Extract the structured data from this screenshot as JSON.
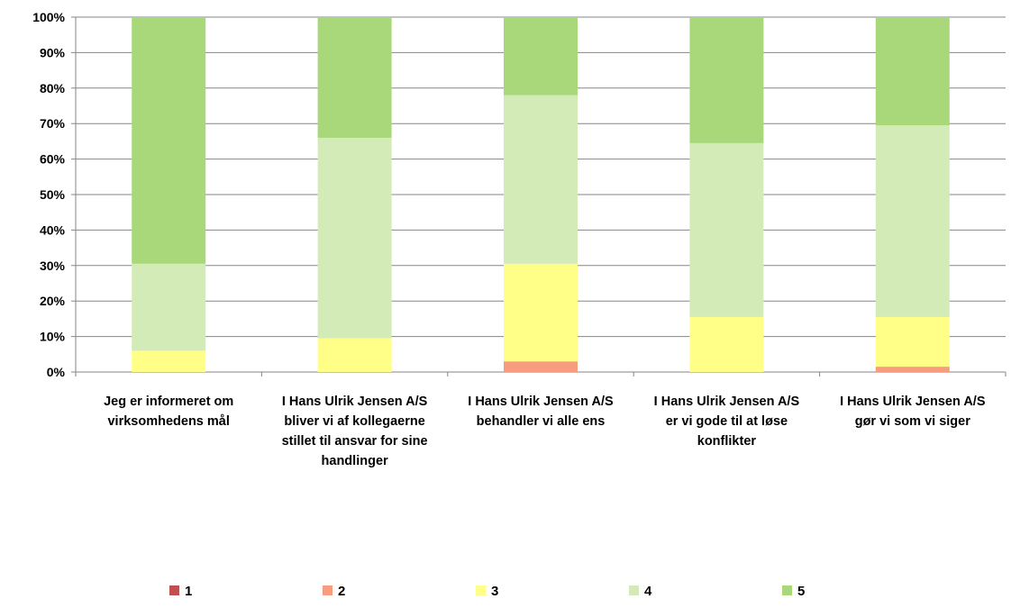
{
  "chart_data": {
    "type": "bar",
    "stacked": "percent",
    "categories": [
      [
        "Jeg er informeret om",
        "virksomhedens mål"
      ],
      [
        "I Hans Ulrik Jensen A/S",
        "bliver vi af kollegaerne",
        "stillet til ansvar for sine",
        "handlinger"
      ],
      [
        "I Hans Ulrik Jensen A/S",
        "behandler vi alle ens"
      ],
      [
        "I Hans Ulrik Jensen A/S",
        "er vi gode til at løse",
        "konflikter"
      ],
      [
        "I Hans Ulrik Jensen A/S",
        "gør vi som vi siger"
      ]
    ],
    "series": [
      {
        "name": "1",
        "color": "#C0504D",
        "values": [
          0,
          0,
          0,
          0,
          0
        ]
      },
      {
        "name": "2",
        "color": "#F79C7F",
        "values": [
          0,
          0,
          3,
          0,
          1.5
        ]
      },
      {
        "name": "3",
        "color": "#FFFF88",
        "values": [
          6,
          9.5,
          27.5,
          15.5,
          14
        ]
      },
      {
        "name": "4",
        "color": "#D3EBB7",
        "values": [
          24.5,
          56.5,
          47.5,
          49,
          54
        ]
      },
      {
        "name": "5",
        "color": "#A8D87A",
        "values": [
          69.5,
          34,
          22,
          35.5,
          30.5
        ]
      }
    ],
    "y_ticks": [
      "0%",
      "10%",
      "20%",
      "30%",
      "40%",
      "50%",
      "60%",
      "70%",
      "80%",
      "90%",
      "100%"
    ],
    "ylim": [
      0,
      100
    ],
    "grid": true,
    "legend_position": "bottom"
  }
}
